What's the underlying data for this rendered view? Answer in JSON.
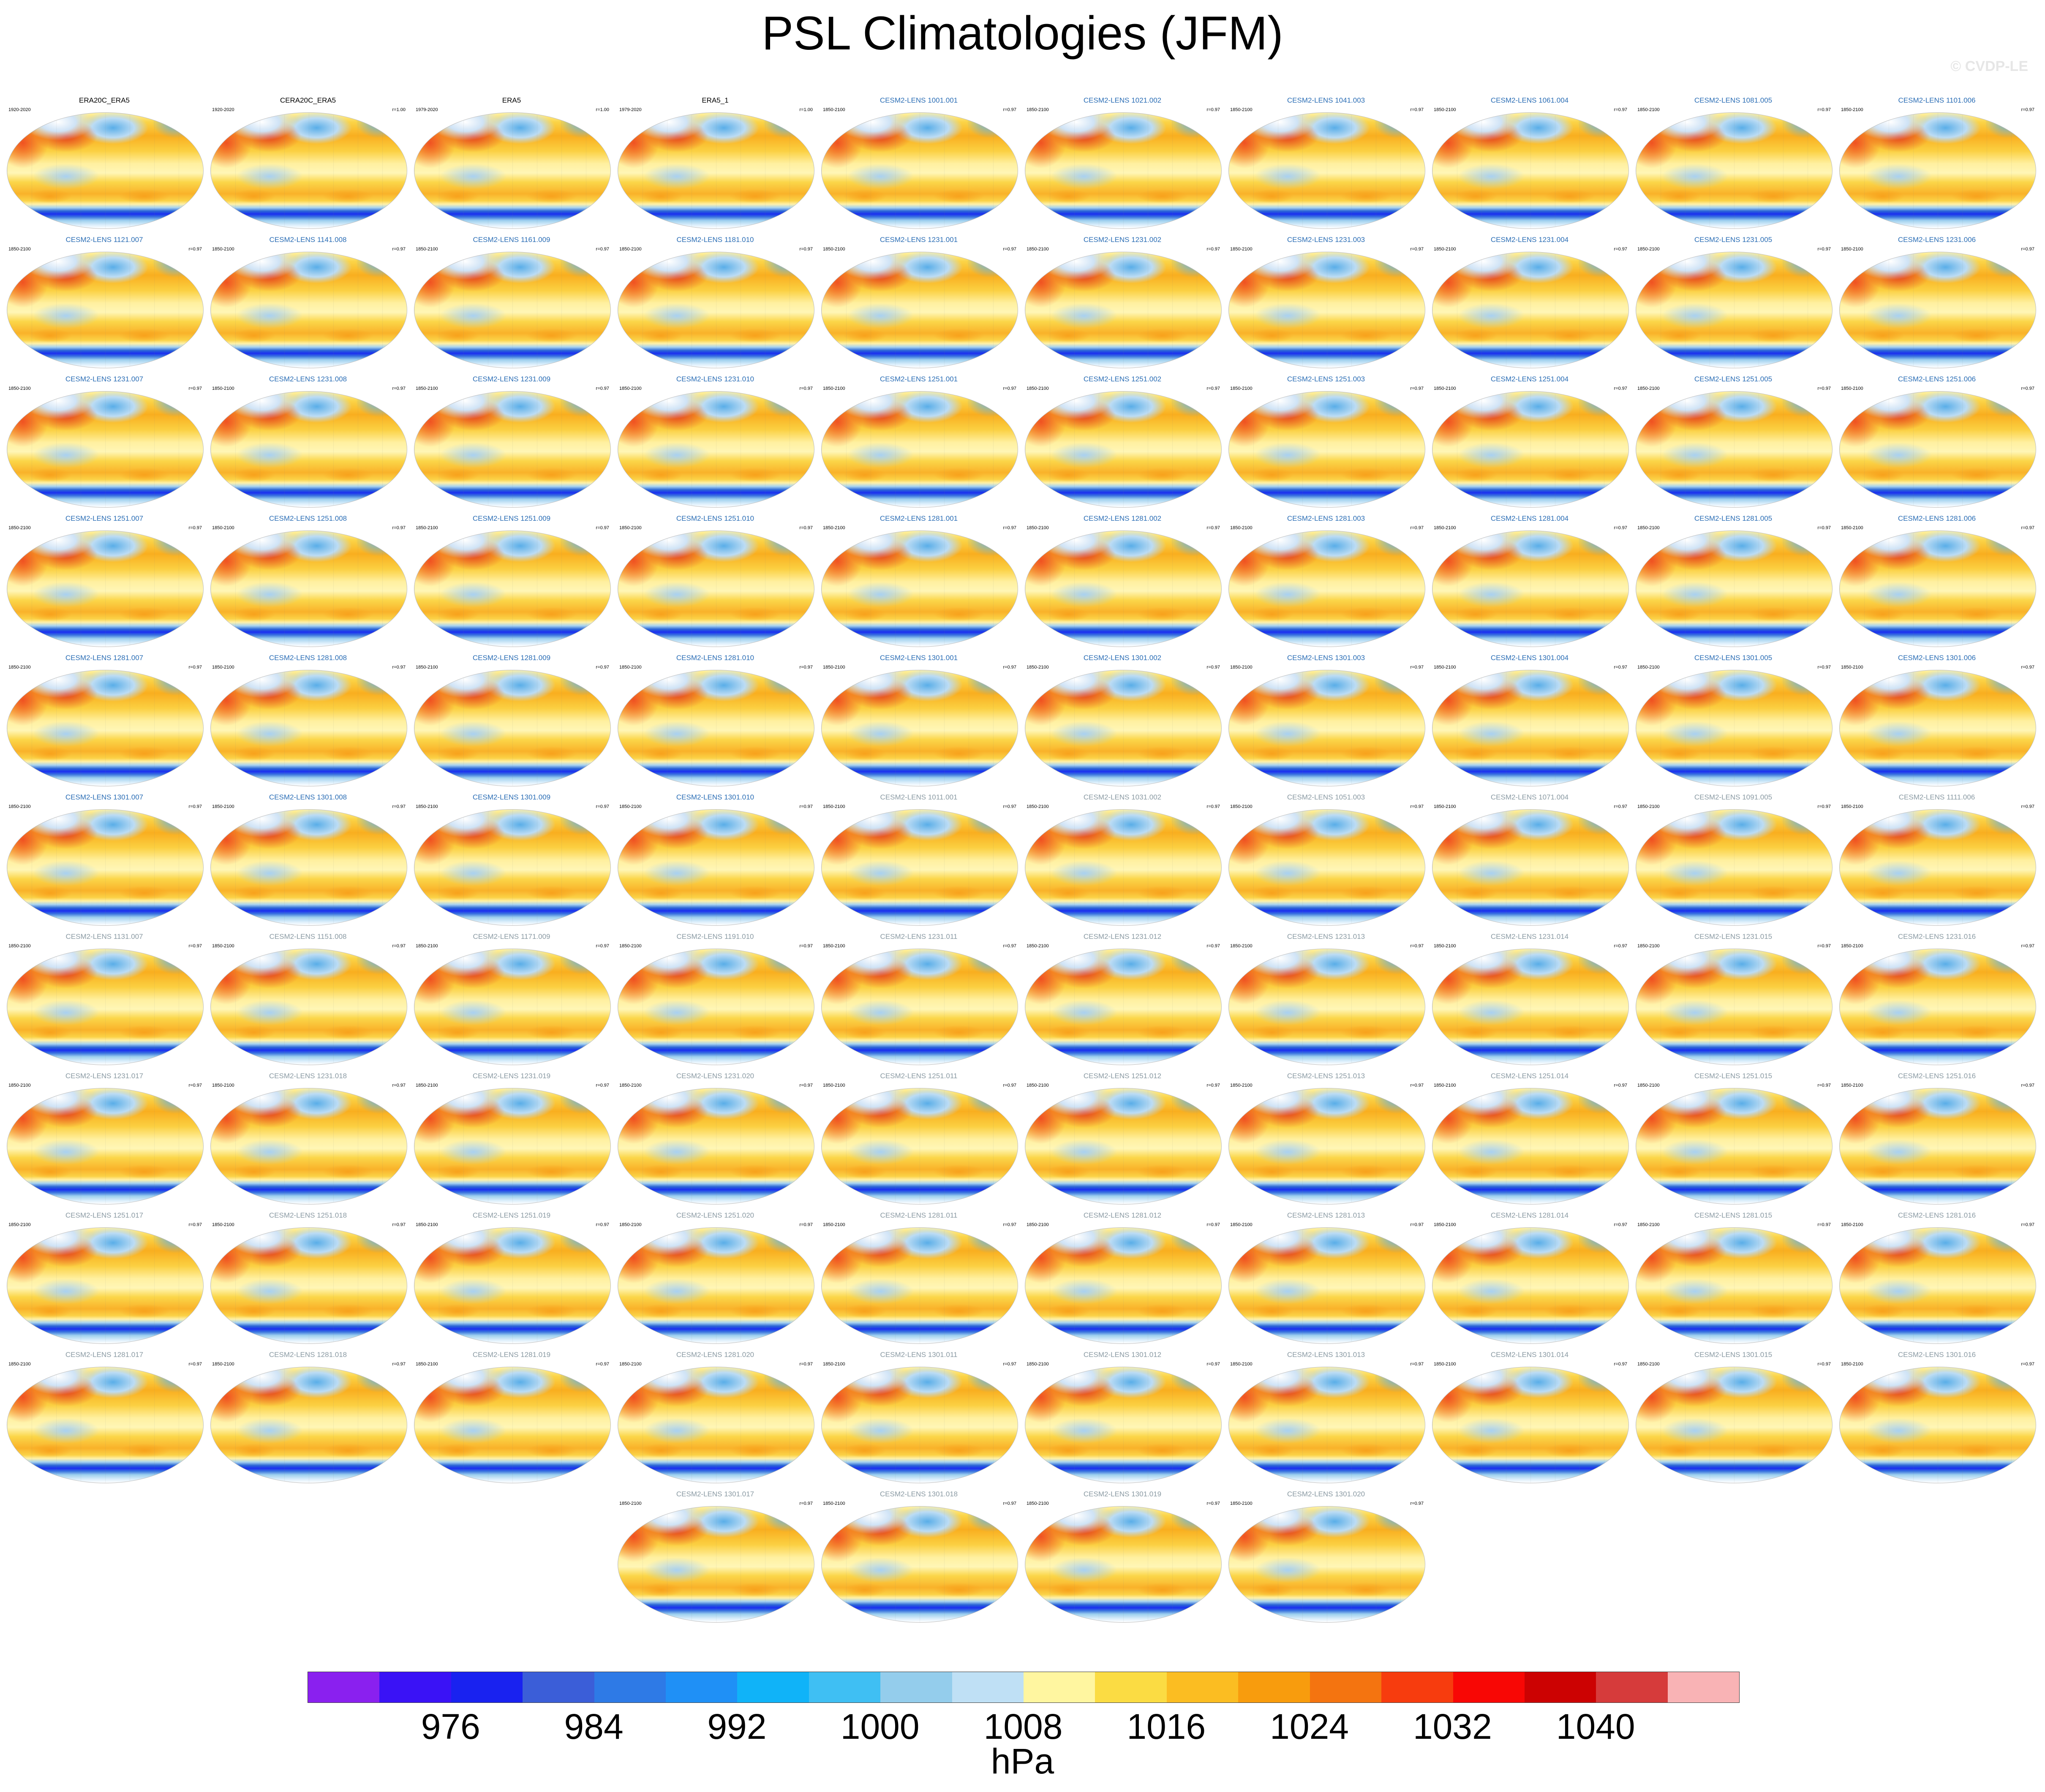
{
  "title": "PSL Climatologies (JFM)",
  "watermark": "© CVDP-LE",
  "panels": [
    {
      "name": "ERA20C_ERA5",
      "years": "1920-2020",
      "corr": "",
      "group": "obs"
    },
    {
      "name": "CERA20C_ERA5",
      "years": "1920-2020",
      "corr": "r=1.00",
      "group": "obs"
    },
    {
      "name": "ERA5",
      "years": "1979-2020",
      "corr": "r=1.00",
      "group": "obs"
    },
    {
      "name": "ERA5_1",
      "years": "1979-2020",
      "corr": "r=1.00",
      "group": "obs"
    },
    {
      "name": "CESM2-LENS 1001.001",
      "years": "1850-2100",
      "corr": "r=0.97",
      "group": "a"
    },
    {
      "name": "CESM2-LENS 1021.002",
      "years": "1850-2100",
      "corr": "r=0.97",
      "group": "a"
    },
    {
      "name": "CESM2-LENS 1041.003",
      "years": "1850-2100",
      "corr": "r=0.97",
      "group": "a"
    },
    {
      "name": "CESM2-LENS 1061.004",
      "years": "1850-2100",
      "corr": "r=0.97",
      "group": "a"
    },
    {
      "name": "CESM2-LENS 1081.005",
      "years": "1850-2100",
      "corr": "r=0.97",
      "group": "a"
    },
    {
      "name": "CESM2-LENS 1101.006",
      "years": "1850-2100",
      "corr": "r=0.97",
      "group": "a"
    },
    {
      "name": "CESM2-LENS 1121.007",
      "years": "1850-2100",
      "corr": "r=0.97",
      "group": "a"
    },
    {
      "name": "CESM2-LENS 1141.008",
      "years": "1850-2100",
      "corr": "r=0.97",
      "group": "a"
    },
    {
      "name": "CESM2-LENS 1161.009",
      "years": "1850-2100",
      "corr": "r=0.97",
      "group": "a"
    },
    {
      "name": "CESM2-LENS 1181.010",
      "years": "1850-2100",
      "corr": "r=0.97",
      "group": "a"
    },
    {
      "name": "CESM2-LENS 1231.001",
      "years": "1850-2100",
      "corr": "r=0.97",
      "group": "a"
    },
    {
      "name": "CESM2-LENS 1231.002",
      "years": "1850-2100",
      "corr": "r=0.97",
      "group": "a"
    },
    {
      "name": "CESM2-LENS 1231.003",
      "years": "1850-2100",
      "corr": "r=0.97",
      "group": "a"
    },
    {
      "name": "CESM2-LENS 1231.004",
      "years": "1850-2100",
      "corr": "r=0.97",
      "group": "a"
    },
    {
      "name": "CESM2-LENS 1231.005",
      "years": "1850-2100",
      "corr": "r=0.97",
      "group": "a"
    },
    {
      "name": "CESM2-LENS 1231.006",
      "years": "1850-2100",
      "corr": "r=0.97",
      "group": "a"
    },
    {
      "name": "CESM2-LENS 1231.007",
      "years": "1850-2100",
      "corr": "r=0.97",
      "group": "a"
    },
    {
      "name": "CESM2-LENS 1231.008",
      "years": "1850-2100",
      "corr": "r=0.97",
      "group": "a"
    },
    {
      "name": "CESM2-LENS 1231.009",
      "years": "1850-2100",
      "corr": "r=0.97",
      "group": "a"
    },
    {
      "name": "CESM2-LENS 1231.010",
      "years": "1850-2100",
      "corr": "r=0.97",
      "group": "a"
    },
    {
      "name": "CESM2-LENS 1251.001",
      "years": "1850-2100",
      "corr": "r=0.97",
      "group": "a"
    },
    {
      "name": "CESM2-LENS 1251.002",
      "years": "1850-2100",
      "corr": "r=0.97",
      "group": "a"
    },
    {
      "name": "CESM2-LENS 1251.003",
      "years": "1850-2100",
      "corr": "r=0.97",
      "group": "a"
    },
    {
      "name": "CESM2-LENS 1251.004",
      "years": "1850-2100",
      "corr": "r=0.97",
      "group": "a"
    },
    {
      "name": "CESM2-LENS 1251.005",
      "years": "1850-2100",
      "corr": "r=0.97",
      "group": "a"
    },
    {
      "name": "CESM2-LENS 1251.006",
      "years": "1850-2100",
      "corr": "r=0.97",
      "group": "a"
    },
    {
      "name": "CESM2-LENS 1251.007",
      "years": "1850-2100",
      "corr": "r=0.97",
      "group": "a"
    },
    {
      "name": "CESM2-LENS 1251.008",
      "years": "1850-2100",
      "corr": "r=0.97",
      "group": "a"
    },
    {
      "name": "CESM2-LENS 1251.009",
      "years": "1850-2100",
      "corr": "r=0.97",
      "group": "a"
    },
    {
      "name": "CESM2-LENS 1251.010",
      "years": "1850-2100",
      "corr": "r=0.97",
      "group": "a"
    },
    {
      "name": "CESM2-LENS 1281.001",
      "years": "1850-2100",
      "corr": "r=0.97",
      "group": "a"
    },
    {
      "name": "CESM2-LENS 1281.002",
      "years": "1850-2100",
      "corr": "r=0.97",
      "group": "a"
    },
    {
      "name": "CESM2-LENS 1281.003",
      "years": "1850-2100",
      "corr": "r=0.97",
      "group": "a"
    },
    {
      "name": "CESM2-LENS 1281.004",
      "years": "1850-2100",
      "corr": "r=0.97",
      "group": "a"
    },
    {
      "name": "CESM2-LENS 1281.005",
      "years": "1850-2100",
      "corr": "r=0.97",
      "group": "a"
    },
    {
      "name": "CESM2-LENS 1281.006",
      "years": "1850-2100",
      "corr": "r=0.97",
      "group": "a"
    },
    {
      "name": "CESM2-LENS 1281.007",
      "years": "1850-2100",
      "corr": "r=0.97",
      "group": "a"
    },
    {
      "name": "CESM2-LENS 1281.008",
      "years": "1850-2100",
      "corr": "r=0.97",
      "group": "a"
    },
    {
      "name": "CESM2-LENS 1281.009",
      "years": "1850-2100",
      "corr": "r=0.97",
      "group": "a"
    },
    {
      "name": "CESM2-LENS 1281.010",
      "years": "1850-2100",
      "corr": "r=0.97",
      "group": "a"
    },
    {
      "name": "CESM2-LENS 1301.001",
      "years": "1850-2100",
      "corr": "r=0.97",
      "group": "a"
    },
    {
      "name": "CESM2-LENS 1301.002",
      "years": "1850-2100",
      "corr": "r=0.97",
      "group": "a"
    },
    {
      "name": "CESM2-LENS 1301.003",
      "years": "1850-2100",
      "corr": "r=0.97",
      "group": "a"
    },
    {
      "name": "CESM2-LENS 1301.004",
      "years": "1850-2100",
      "corr": "r=0.97",
      "group": "a"
    },
    {
      "name": "CESM2-LENS 1301.005",
      "years": "1850-2100",
      "corr": "r=0.97",
      "group": "a"
    },
    {
      "name": "CESM2-LENS 1301.006",
      "years": "1850-2100",
      "corr": "r=0.97",
      "group": "a"
    },
    {
      "name": "CESM2-LENS 1301.007",
      "years": "1850-2100",
      "corr": "r=0.97",
      "group": "a"
    },
    {
      "name": "CESM2-LENS 1301.008",
      "years": "1850-2100",
      "corr": "r=0.97",
      "group": "a"
    },
    {
      "name": "CESM2-LENS 1301.009",
      "years": "1850-2100",
      "corr": "r=0.97",
      "group": "a"
    },
    {
      "name": "CESM2-LENS 1301.010",
      "years": "1850-2100",
      "corr": "r=0.97",
      "group": "a"
    },
    {
      "name": "CESM2-LENS 1011.001",
      "years": "1850-2100",
      "corr": "r=0.97",
      "group": "b"
    },
    {
      "name": "CESM2-LENS 1031.002",
      "years": "1850-2100",
      "corr": "r=0.97",
      "group": "b"
    },
    {
      "name": "CESM2-LENS 1051.003",
      "years": "1850-2100",
      "corr": "r=0.97",
      "group": "b"
    },
    {
      "name": "CESM2-LENS 1071.004",
      "years": "1850-2100",
      "corr": "r=0.97",
      "group": "b"
    },
    {
      "name": "CESM2-LENS 1091.005",
      "years": "1850-2100",
      "corr": "r=0.97",
      "group": "b"
    },
    {
      "name": "CESM2-LENS 1111.006",
      "years": "1850-2100",
      "corr": "r=0.97",
      "group": "b"
    },
    {
      "name": "CESM2-LENS 1131.007",
      "years": "1850-2100",
      "corr": "r=0.97",
      "group": "b"
    },
    {
      "name": "CESM2-LENS 1151.008",
      "years": "1850-2100",
      "corr": "r=0.97",
      "group": "b"
    },
    {
      "name": "CESM2-LENS 1171.009",
      "years": "1850-2100",
      "corr": "r=0.97",
      "group": "b"
    },
    {
      "name": "CESM2-LENS 1191.010",
      "years": "1850-2100",
      "corr": "r=0.97",
      "group": "b"
    },
    {
      "name": "CESM2-LENS 1231.011",
      "years": "1850-2100",
      "corr": "r=0.97",
      "group": "b"
    },
    {
      "name": "CESM2-LENS 1231.012",
      "years": "1850-2100",
      "corr": "r=0.97",
      "group": "b"
    },
    {
      "name": "CESM2-LENS 1231.013",
      "years": "1850-2100",
      "corr": "r=0.97",
      "group": "b"
    },
    {
      "name": "CESM2-LENS 1231.014",
      "years": "1850-2100",
      "corr": "r=0.97",
      "group": "b"
    },
    {
      "name": "CESM2-LENS 1231.015",
      "years": "1850-2100",
      "corr": "r=0.97",
      "group": "b"
    },
    {
      "name": "CESM2-LENS 1231.016",
      "years": "1850-2100",
      "corr": "r=0.97",
      "group": "b"
    },
    {
      "name": "CESM2-LENS 1231.017",
      "years": "1850-2100",
      "corr": "r=0.97",
      "group": "b"
    },
    {
      "name": "CESM2-LENS 1231.018",
      "years": "1850-2100",
      "corr": "r=0.97",
      "group": "b"
    },
    {
      "name": "CESM2-LENS 1231.019",
      "years": "1850-2100",
      "corr": "r=0.97",
      "group": "b"
    },
    {
      "name": "CESM2-LENS 1231.020",
      "years": "1850-2100",
      "corr": "r=0.97",
      "group": "b"
    },
    {
      "name": "CESM2-LENS 1251.011",
      "years": "1850-2100",
      "corr": "r=0.97",
      "group": "b"
    },
    {
      "name": "CESM2-LENS 1251.012",
      "years": "1850-2100",
      "corr": "r=0.97",
      "group": "b"
    },
    {
      "name": "CESM2-LENS 1251.013",
      "years": "1850-2100",
      "corr": "r=0.97",
      "group": "b"
    },
    {
      "name": "CESM2-LENS 1251.014",
      "years": "1850-2100",
      "corr": "r=0.97",
      "group": "b"
    },
    {
      "name": "CESM2-LENS 1251.015",
      "years": "1850-2100",
      "corr": "r=0.97",
      "group": "b"
    },
    {
      "name": "CESM2-LENS 1251.016",
      "years": "1850-2100",
      "corr": "r=0.97",
      "group": "b"
    },
    {
      "name": "CESM2-LENS 1251.017",
      "years": "1850-2100",
      "corr": "r=0.97",
      "group": "b"
    },
    {
      "name": "CESM2-LENS 1251.018",
      "years": "1850-2100",
      "corr": "r=0.97",
      "group": "b"
    },
    {
      "name": "CESM2-LENS 1251.019",
      "years": "1850-2100",
      "corr": "r=0.97",
      "group": "b"
    },
    {
      "name": "CESM2-LENS 1251.020",
      "years": "1850-2100",
      "corr": "r=0.97",
      "group": "b"
    },
    {
      "name": "CESM2-LENS 1281.011",
      "years": "1850-2100",
      "corr": "r=0.97",
      "group": "b"
    },
    {
      "name": "CESM2-LENS 1281.012",
      "years": "1850-2100",
      "corr": "r=0.97",
      "group": "b"
    },
    {
      "name": "CESM2-LENS 1281.013",
      "years": "1850-2100",
      "corr": "r=0.97",
      "group": "b"
    },
    {
      "name": "CESM2-LENS 1281.014",
      "years": "1850-2100",
      "corr": "r=0.97",
      "group": "b"
    },
    {
      "name": "CESM2-LENS 1281.015",
      "years": "1850-2100",
      "corr": "r=0.97",
      "group": "b"
    },
    {
      "name": "CESM2-LENS 1281.016",
      "years": "1850-2100",
      "corr": "r=0.97",
      "group": "b"
    },
    {
      "name": "CESM2-LENS 1281.017",
      "years": "1850-2100",
      "corr": "r=0.97",
      "group": "b"
    },
    {
      "name": "CESM2-LENS 1281.018",
      "years": "1850-2100",
      "corr": "r=0.97",
      "group": "b"
    },
    {
      "name": "CESM2-LENS 1281.019",
      "years": "1850-2100",
      "corr": "r=0.97",
      "group": "b"
    },
    {
      "name": "CESM2-LENS 1281.020",
      "years": "1850-2100",
      "corr": "r=0.97",
      "group": "b"
    },
    {
      "name": "CESM2-LENS 1301.011",
      "years": "1850-2100",
      "corr": "r=0.97",
      "group": "b"
    },
    {
      "name": "CESM2-LENS 1301.012",
      "years": "1850-2100",
      "corr": "r=0.97",
      "group": "b"
    },
    {
      "name": "CESM2-LENS 1301.013",
      "years": "1850-2100",
      "corr": "r=0.97",
      "group": "b"
    },
    {
      "name": "CESM2-LENS 1301.014",
      "years": "1850-2100",
      "corr": "r=0.97",
      "group": "b"
    },
    {
      "name": "CESM2-LENS 1301.015",
      "years": "1850-2100",
      "corr": "r=0.97",
      "group": "b"
    },
    {
      "name": "CESM2-LENS 1301.016",
      "years": "1850-2100",
      "corr": "r=0.97",
      "group": "b"
    },
    {
      "name": "CESM2-LENS 1301.017",
      "years": "1850-2100",
      "corr": "r=0.97",
      "group": "b"
    },
    {
      "name": "CESM2-LENS 1301.018",
      "years": "1850-2100",
      "corr": "r=0.97",
      "group": "b"
    },
    {
      "name": "CESM2-LENS 1301.019",
      "years": "1850-2100",
      "corr": "r=0.97",
      "group": "b"
    },
    {
      "name": "CESM2-LENS 1301.020",
      "years": "1850-2100",
      "corr": "r=0.97",
      "group": "b"
    }
  ],
  "group_colors": {
    "obs": "#000000",
    "a": "#2a6db5",
    "b": "#8a9aa3"
  },
  "colorbar": {
    "colors": [
      "#8a20ef",
      "#3a12f6",
      "#1922f0",
      "#3b5ed8",
      "#2e7ae6",
      "#1f90f6",
      "#10b3f8",
      "#3fbff3",
      "#94cdec",
      "#bfe0f5",
      "#fff6a0",
      "#fbdc43",
      "#fbbd22",
      "#f89c0d",
      "#f47410",
      "#f73c0e",
      "#f80705",
      "#cc0202",
      "#d63b3b",
      "#f9b3b5"
    ],
    "tick_labels": [
      "976",
      "984",
      "992",
      "1000",
      "1008",
      "1016",
      "1024",
      "1032",
      "1040"
    ],
    "unit": "hPa"
  }
}
